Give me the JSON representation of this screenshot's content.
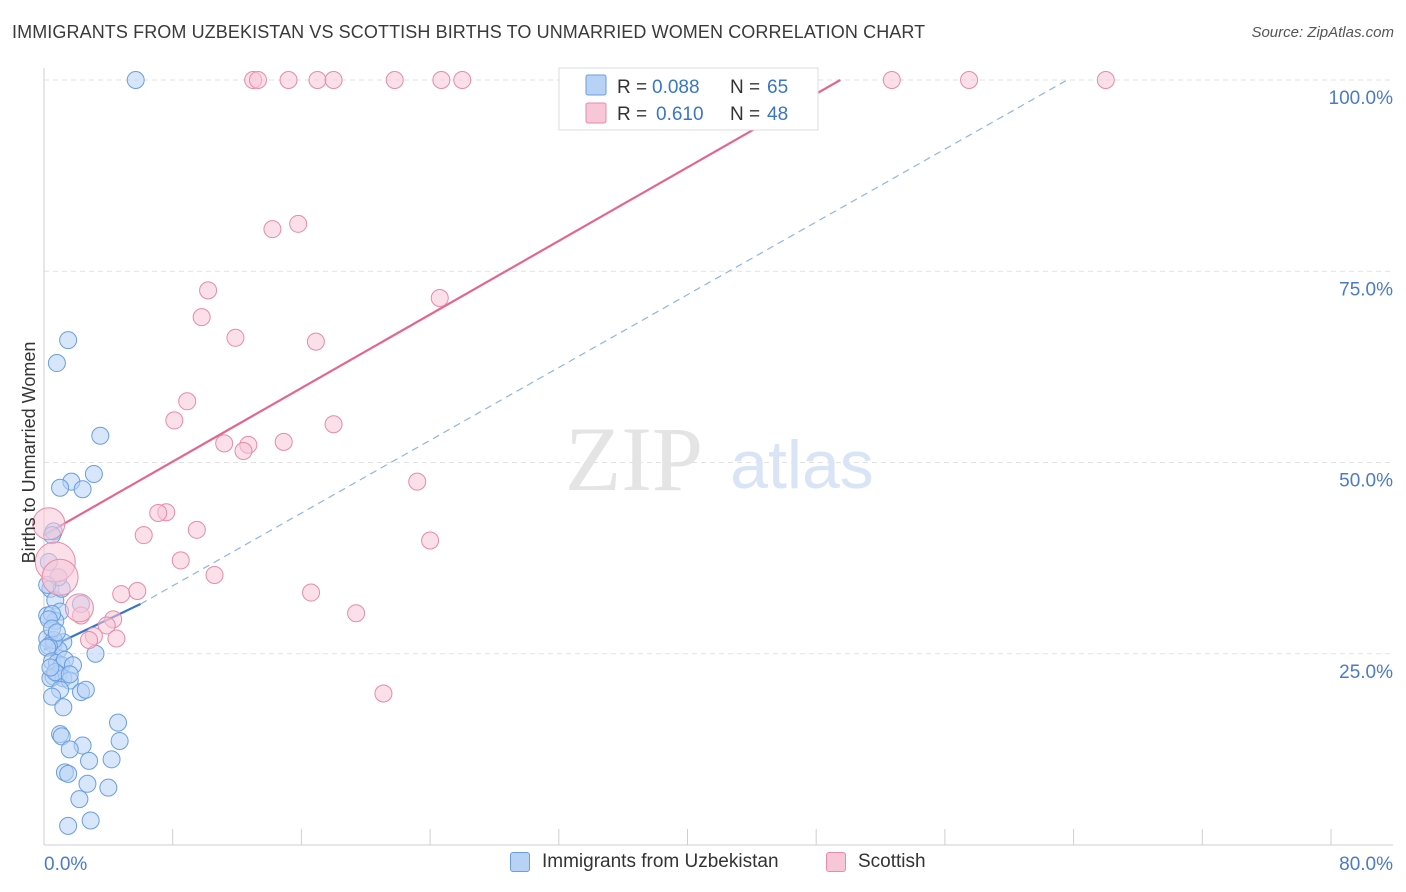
{
  "header": {
    "title": "IMMIGRANTS FROM UZBEKISTAN VS SCOTTISH BIRTHS TO UNMARRIED WOMEN CORRELATION CHART",
    "source": "Source: ZipAtlas.com"
  },
  "watermark": {
    "zip": "ZIP",
    "atlas": "atlas"
  },
  "colors": {
    "blue_fill": "#b7d2f5",
    "blue_stroke": "#6a9ee0",
    "blue_line": "#3a75c9",
    "pink_fill": "#f8c7d7",
    "pink_stroke": "#e88aa8",
    "pink_line": "#e36690",
    "axis_text": "#4b7bc8",
    "grid": "#e2e2e2"
  },
  "legend": {
    "rows": [
      {
        "r_label": "R = ",
        "r_value": "0.088",
        "n_label": "N = ",
        "n_value": "65",
        "series": "blue"
      },
      {
        "r_label": "R = ",
        "r_value": "0.610",
        "n_label": "N = ",
        "n_value": "48",
        "series": "pink"
      }
    ]
  },
  "chart_data": {
    "type": "scatter",
    "title": "IMMIGRANTS FROM UZBEKISTAN VS SCOTTISH BIRTHS TO UNMARRIED WOMEN CORRELATION CHART",
    "xlabel": "",
    "ylabel": "Births to Unmarried Women",
    "xlim": [
      0,
      80
    ],
    "ylim": [
      0,
      100
    ],
    "x_tick_labels": [
      "0.0%",
      "80.0%"
    ],
    "y_ticks": [
      25,
      50,
      75,
      100
    ],
    "y_tick_labels": [
      "25.0%",
      "50.0%",
      "75.0%",
      "100.0%"
    ],
    "legend_position": "top-center",
    "series": [
      {
        "name": "Immigrants from Uzbekistan",
        "color": "blue",
        "R": 0.088,
        "N": 65,
        "trend": {
          "x0": 0,
          "y0": 25.5,
          "x1": 6.0,
          "y1": 31.5,
          "extended_x1": 63.6,
          "extended_y1": 100
        },
        "points": [
          [
            5.7,
            100
          ],
          [
            1.5,
            66
          ],
          [
            0.8,
            63
          ],
          [
            3.5,
            53.5
          ],
          [
            3.1,
            48.5
          ],
          [
            1.7,
            47.5
          ],
          [
            1.0,
            46.7
          ],
          [
            2.4,
            46.5
          ],
          [
            0.6,
            41
          ],
          [
            0.5,
            40.5
          ],
          [
            0.4,
            33.5
          ],
          [
            0.7,
            32
          ],
          [
            1.1,
            33.5
          ],
          [
            2.3,
            31.5
          ],
          [
            1.0,
            30.5
          ],
          [
            0.2,
            30
          ],
          [
            0.7,
            29.3
          ],
          [
            0.5,
            30.2
          ],
          [
            0.3,
            29.5
          ],
          [
            0.2,
            27
          ],
          [
            0.6,
            26.2
          ],
          [
            1.2,
            26.5
          ],
          [
            0.9,
            25.5
          ],
          [
            0.6,
            26.8
          ],
          [
            0.3,
            26
          ],
          [
            0.2,
            25.8
          ],
          [
            3.2,
            25
          ],
          [
            0.5,
            24
          ],
          [
            0.8,
            23.8
          ],
          [
            1.1,
            23.5
          ],
          [
            1.3,
            24.2
          ],
          [
            1.8,
            23.5
          ],
          [
            0.6,
            22
          ],
          [
            0.9,
            22.3
          ],
          [
            1.2,
            21.8
          ],
          [
            1.6,
            21.5
          ],
          [
            0.4,
            21.8
          ],
          [
            0.7,
            22.6
          ],
          [
            1.0,
            20.3
          ],
          [
            2.3,
            20
          ],
          [
            2.6,
            20.3
          ],
          [
            0.5,
            19.4
          ],
          [
            1.2,
            18
          ],
          [
            4.6,
            16
          ],
          [
            1.0,
            14.5
          ],
          [
            1.1,
            14.2
          ],
          [
            4.7,
            13.6
          ],
          [
            2.4,
            13
          ],
          [
            1.6,
            12.5
          ],
          [
            2.8,
            11
          ],
          [
            4.2,
            11.2
          ],
          [
            1.3,
            9.5
          ],
          [
            1.5,
            9.3
          ],
          [
            2.7,
            8
          ],
          [
            4.0,
            7.5
          ],
          [
            2.2,
            6
          ],
          [
            1.5,
            2.5
          ],
          [
            2.9,
            3.2
          ],
          [
            0.3,
            37
          ],
          [
            0.9,
            35
          ],
          [
            0.2,
            34
          ],
          [
            1.6,
            22.3
          ],
          [
            0.5,
            28.3
          ],
          [
            0.8,
            27.8
          ],
          [
            0.4,
            23.2
          ]
        ]
      },
      {
        "name": "Scottish",
        "color": "pink",
        "R": 0.61,
        "N": 48,
        "trend": {
          "x0": 0,
          "y0": 40.5,
          "x1": 49.5,
          "y1": 100
        },
        "points": [
          [
            13.0,
            100
          ],
          [
            13.3,
            100
          ],
          [
            15.2,
            100
          ],
          [
            17.0,
            100
          ],
          [
            18.0,
            100
          ],
          [
            21.8,
            100
          ],
          [
            24.7,
            100
          ],
          [
            26.0,
            100
          ],
          [
            52.7,
            100
          ],
          [
            57.5,
            100
          ],
          [
            66.0,
            100
          ],
          [
            15.8,
            81.2
          ],
          [
            14.2,
            80.5
          ],
          [
            10.2,
            72.5
          ],
          [
            9.8,
            69
          ],
          [
            11.9,
            66.3
          ],
          [
            16.9,
            65.8
          ],
          [
            24.6,
            71.5
          ],
          [
            8.9,
            58
          ],
          [
            8.1,
            55.5
          ],
          [
            18.0,
            55
          ],
          [
            11.2,
            52.5
          ],
          [
            12.7,
            52.3
          ],
          [
            14.9,
            52.7
          ],
          [
            12.4,
            51.5
          ],
          [
            23.2,
            47.5
          ],
          [
            7.6,
            43.5
          ],
          [
            7.1,
            43.4
          ],
          [
            6.2,
            40.5
          ],
          [
            9.5,
            41.2
          ],
          [
            8.5,
            37.2
          ],
          [
            24.0,
            39.8
          ],
          [
            10.6,
            35.3
          ],
          [
            5.8,
            33.2
          ],
          [
            4.8,
            32.8
          ],
          [
            16.6,
            33
          ],
          [
            19.4,
            30.3
          ],
          [
            4.3,
            29.5
          ],
          [
            2.3,
            30
          ],
          [
            3.9,
            28.7
          ],
          [
            3.1,
            27.3
          ],
          [
            4.5,
            27
          ],
          [
            2.8,
            26.8
          ],
          [
            21.1,
            19.8
          ],
          [
            0.3,
            42
          ],
          [
            0.7,
            37
          ],
          [
            1.0,
            35
          ],
          [
            2.2,
            31
          ]
        ]
      }
    ]
  },
  "axes": {
    "y_label": "Births to Unmarried Women",
    "x_min_label": "0.0%",
    "x_max_label": "80.0%"
  },
  "bottom_legend": {
    "items": [
      {
        "label": "Immigrants from Uzbekistan",
        "series": "blue"
      },
      {
        "label": "Scottish",
        "series": "pink"
      }
    ]
  }
}
